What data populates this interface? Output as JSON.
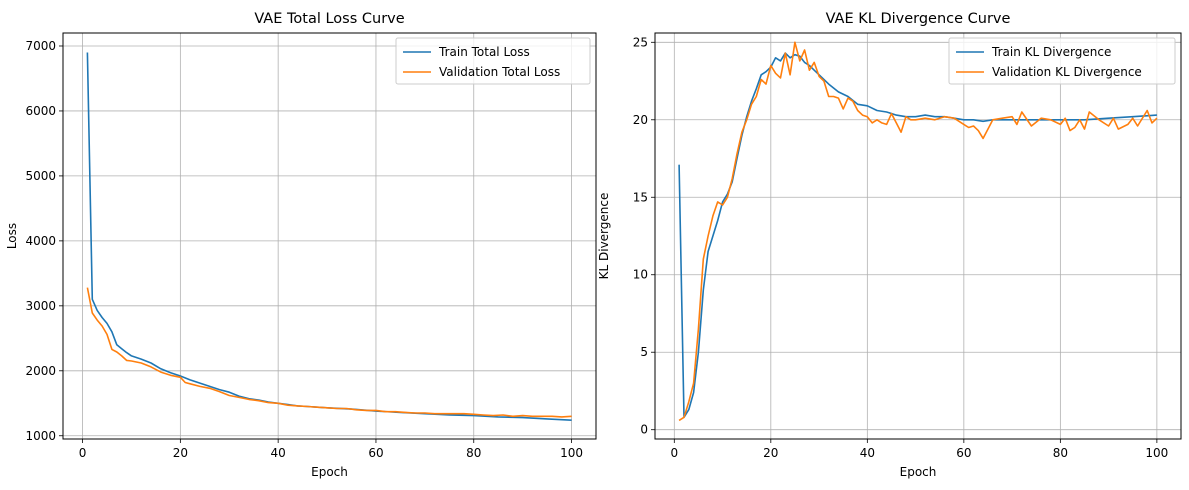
{
  "chart_data": [
    {
      "type": "line",
      "title": "VAE Total Loss Curve",
      "xlabel": "Epoch",
      "ylabel": "Loss",
      "xlim": [
        -4,
        105
      ],
      "ylim": [
        950,
        7200
      ],
      "xticks": [
        0,
        20,
        40,
        60,
        80,
        100
      ],
      "yticks": [
        1000,
        2000,
        3000,
        4000,
        5000,
        6000,
        7000
      ],
      "grid": true,
      "legend_position": "top-right",
      "series": [
        {
          "name": "Train Total Loss",
          "color": "#1f77b4",
          "x": [
            1,
            2,
            3,
            4,
            5,
            6,
            7,
            8,
            9,
            10,
            12,
            14,
            16,
            18,
            20,
            22,
            24,
            26,
            28,
            30,
            32,
            34,
            36,
            38,
            40,
            42,
            44,
            46,
            48,
            50,
            55,
            60,
            65,
            70,
            75,
            80,
            85,
            90,
            95,
            100
          ],
          "y": [
            6900,
            3100,
            2930,
            2820,
            2730,
            2600,
            2400,
            2340,
            2280,
            2230,
            2180,
            2120,
            2030,
            1970,
            1920,
            1860,
            1810,
            1760,
            1710,
            1670,
            1610,
            1570,
            1550,
            1520,
            1500,
            1480,
            1460,
            1450,
            1440,
            1430,
            1410,
            1380,
            1360,
            1340,
            1320,
            1310,
            1290,
            1280,
            1260,
            1240
          ]
        },
        {
          "name": "Validation Total Loss",
          "color": "#ff7f0e",
          "x": [
            1,
            2,
            3,
            4,
            5,
            6,
            7,
            8,
            9,
            10,
            12,
            14,
            16,
            18,
            20,
            21,
            22,
            24,
            26,
            28,
            30,
            32,
            34,
            36,
            38,
            40,
            42,
            44,
            46,
            48,
            50,
            52,
            54,
            56,
            58,
            60,
            62,
            64,
            66,
            68,
            70,
            72,
            74,
            76,
            78,
            80,
            82,
            84,
            86,
            88,
            90,
            92,
            94,
            96,
            98,
            100
          ],
          "y": [
            3280,
            2890,
            2780,
            2690,
            2560,
            2330,
            2290,
            2230,
            2160,
            2150,
            2120,
            2060,
            1980,
            1930,
            1900,
            1820,
            1800,
            1760,
            1730,
            1680,
            1620,
            1590,
            1560,
            1540,
            1510,
            1500,
            1470,
            1460,
            1450,
            1440,
            1430,
            1420,
            1420,
            1400,
            1390,
            1390,
            1370,
            1370,
            1360,
            1350,
            1350,
            1340,
            1340,
            1340,
            1340,
            1330,
            1320,
            1310,
            1320,
            1300,
            1310,
            1300,
            1300,
            1300,
            1290,
            1300
          ]
        }
      ]
    },
    {
      "type": "line",
      "title": "VAE KL Divergence Curve",
      "xlabel": "Epoch",
      "ylabel": "KL Divergence",
      "xlim": [
        -4,
        105
      ],
      "ylim": [
        -0.6,
        25.6
      ],
      "xticks": [
        0,
        20,
        40,
        60,
        80,
        100
      ],
      "yticks": [
        0,
        5,
        10,
        15,
        20,
        25
      ],
      "grid": true,
      "legend_position": "top-right",
      "series": [
        {
          "name": "Train KL Divergence",
          "color": "#1f77b4",
          "x": [
            1,
            2,
            3,
            4,
            5,
            6,
            7,
            8,
            9,
            10,
            11,
            12,
            13,
            14,
            15,
            16,
            17,
            18,
            19,
            20,
            21,
            22,
            23,
            24,
            25,
            26,
            27,
            28,
            29,
            30,
            32,
            34,
            36,
            38,
            40,
            42,
            44,
            46,
            48,
            50,
            52,
            54,
            56,
            58,
            60,
            62,
            64,
            66,
            68,
            70,
            75,
            80,
            85,
            90,
            95,
            100
          ],
          "y": [
            17.1,
            0.8,
            1.3,
            2.4,
            5.0,
            9.0,
            11.5,
            12.5,
            13.5,
            14.7,
            15.2,
            16.0,
            17.5,
            19.0,
            20.2,
            21.2,
            22.0,
            22.9,
            23.1,
            23.4,
            24.0,
            23.8,
            24.3,
            24.0,
            24.2,
            24.1,
            23.7,
            23.5,
            23.2,
            22.9,
            22.3,
            21.8,
            21.5,
            21.0,
            20.9,
            20.6,
            20.5,
            20.3,
            20.2,
            20.2,
            20.3,
            20.2,
            20.2,
            20.1,
            20.0,
            20.0,
            19.9,
            20.0,
            20.0,
            20.0,
            20.0,
            20.0,
            20.0,
            20.1,
            20.2,
            20.3
          ]
        },
        {
          "name": "Validation KL Divergence",
          "color": "#ff7f0e",
          "x": [
            1,
            2,
            3,
            4,
            5,
            6,
            7,
            8,
            9,
            10,
            11,
            12,
            13,
            14,
            15,
            16,
            17,
            18,
            19,
            20,
            21,
            22,
            23,
            24,
            25,
            26,
            27,
            28,
            29,
            30,
            31,
            32,
            33,
            34,
            35,
            36,
            37,
            38,
            39,
            40,
            41,
            42,
            43,
            44,
            45,
            46,
            47,
            48,
            49,
            50,
            52,
            54,
            56,
            58,
            60,
            61,
            62,
            63,
            64,
            66,
            68,
            70,
            71,
            72,
            74,
            76,
            78,
            80,
            81,
            82,
            83,
            84,
            85,
            86,
            88,
            90,
            91,
            92,
            94,
            95,
            96,
            98,
            99,
            100
          ],
          "y": [
            0.6,
            0.8,
            1.8,
            3.0,
            6.5,
            11.0,
            12.5,
            13.8,
            14.7,
            14.5,
            15.0,
            16.2,
            17.8,
            19.2,
            20.0,
            21.0,
            21.5,
            22.6,
            22.3,
            23.5,
            23.0,
            22.7,
            24.3,
            22.9,
            25.0,
            23.8,
            24.5,
            23.2,
            23.7,
            22.8,
            22.5,
            21.5,
            21.5,
            21.4,
            20.7,
            21.4,
            21.2,
            20.6,
            20.3,
            20.2,
            19.8,
            20.0,
            19.8,
            19.7,
            20.4,
            19.8,
            19.2,
            20.2,
            20.0,
            20.0,
            20.1,
            20.0,
            20.2,
            20.1,
            19.7,
            19.5,
            19.6,
            19.3,
            18.8,
            20.0,
            20.1,
            20.2,
            19.7,
            20.5,
            19.6,
            20.1,
            20.0,
            19.7,
            20.1,
            19.3,
            19.5,
            20.0,
            19.4,
            20.5,
            20.0,
            19.6,
            20.1,
            19.4,
            19.7,
            20.1,
            19.6,
            20.6,
            19.8,
            20.1
          ]
        }
      ]
    }
  ]
}
